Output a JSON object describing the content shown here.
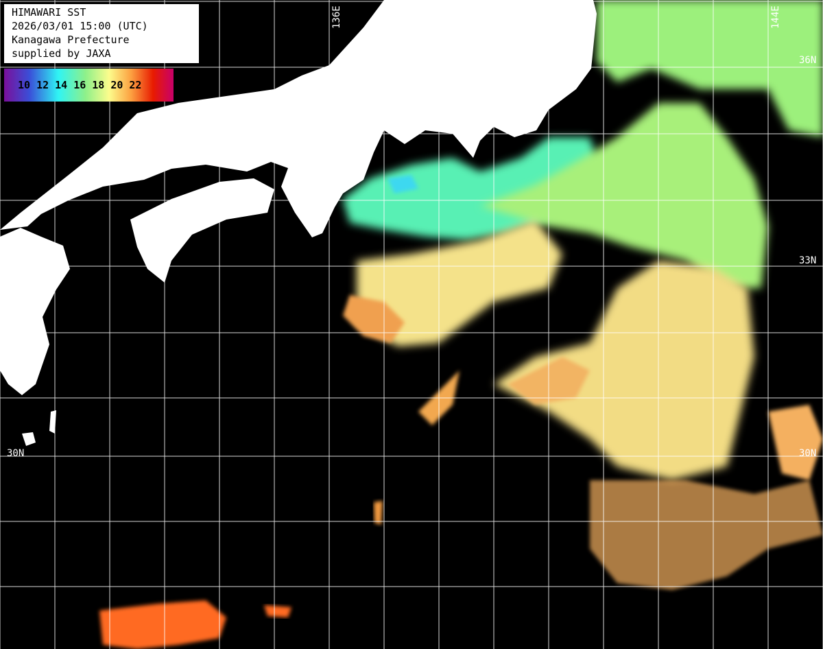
{
  "header": {
    "title": "HIMAWARI SST",
    "datetime": "2026/03/01 15:00 (UTC)",
    "region": "Kanagawa Prefecture",
    "credit": "supplied by JAXA"
  },
  "colorbar": {
    "ticks": [
      "10",
      "12",
      "14",
      "16",
      "18",
      "20",
      "22"
    ],
    "colors": [
      "#7a0f9a",
      "#3a4fd8",
      "#2ff4f4",
      "#8ef08a",
      "#fcfc8c",
      "#fca040",
      "#e81b00",
      "#c8006a"
    ]
  },
  "grid_labels": {
    "lon_136": "136E",
    "lon_144": "144E",
    "lat_36": "36N",
    "lat_33_left": "33",
    "lat_33_right": "33N",
    "lat_30_left": "30N",
    "lat_30_right": "30N"
  },
  "colors": {
    "land": "#ffffff",
    "cloud_no_data": "#000000",
    "grid": "#ffffff"
  }
}
